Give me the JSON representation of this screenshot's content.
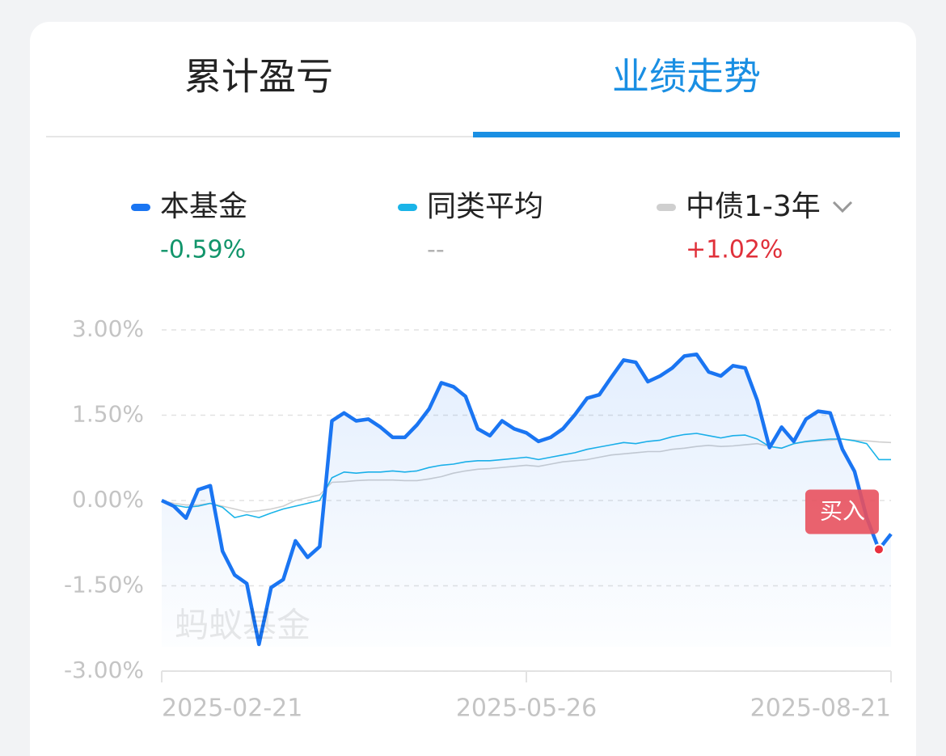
{
  "tabs": [
    "累计盈亏",
    "业绩走势"
  ],
  "watermark": "蚂蚁基金",
  "annotation": "买入",
  "chart_data": {
    "type": "line",
    "categories": [
      "2025-02-21",
      null,
      null,
      null,
      null,
      null,
      null,
      null,
      null,
      null,
      null,
      null,
      null,
      null,
      null,
      null,
      null,
      null,
      null,
      null,
      null,
      null,
      null,
      null,
      null,
      null,
      null,
      null,
      null,
      null,
      "2025-05-26",
      null,
      null,
      null,
      null,
      null,
      null,
      null,
      null,
      null,
      null,
      null,
      null,
      null,
      null,
      null,
      null,
      null,
      null,
      null,
      null,
      null,
      null,
      null,
      null,
      null,
      null,
      null,
      null,
      null,
      "2025-08-21"
    ],
    "ylim": [
      -3,
      3
    ],
    "yticks": [
      {
        "value": 3,
        "label": "3.00%"
      },
      {
        "value": 1.5,
        "label": "1.50%"
      },
      {
        "value": 0,
        "label": "0.00%"
      },
      {
        "value": -1.5,
        "label": "-1.50%"
      },
      {
        "value": -3,
        "label": "-3.00%"
      }
    ],
    "grid": true,
    "series": [
      {
        "name": "本基金",
        "color": "#1a75f2",
        "change": "-0.59%",
        "change_color": "#12956b",
        "values": [
          0,
          -0.1,
          -0.31,
          0.19,
          0.26,
          -0.89,
          -1.31,
          -1.46,
          -2.53,
          -1.53,
          -1.39,
          -0.71,
          -1.0,
          -0.81,
          1.4,
          1.54,
          1.4,
          1.43,
          1.29,
          1.11,
          1.11,
          1.33,
          1.61,
          2.07,
          2.0,
          1.83,
          1.26,
          1.14,
          1.4,
          1.26,
          1.19,
          1.04,
          1.11,
          1.26,
          1.51,
          1.8,
          1.86,
          2.17,
          2.47,
          2.43,
          2.09,
          2.19,
          2.33,
          2.54,
          2.57,
          2.26,
          2.19,
          2.37,
          2.33,
          1.76,
          0.93,
          1.29,
          1.04,
          1.43,
          1.57,
          1.54,
          0.9,
          0.51,
          -0.3,
          -0.86,
          -0.59
        ]
      },
      {
        "name": "同类平均",
        "color": "#1ab4e8",
        "change": "--",
        "change_color": "#b0b0b0",
        "values": [
          0,
          -0.08,
          -0.12,
          -0.1,
          -0.05,
          -0.12,
          -0.3,
          -0.25,
          -0.3,
          -0.22,
          -0.15,
          -0.1,
          -0.05,
          0,
          0.4,
          0.5,
          0.48,
          0.5,
          0.5,
          0.52,
          0.5,
          0.52,
          0.58,
          0.62,
          0.64,
          0.68,
          0.7,
          0.7,
          0.72,
          0.74,
          0.76,
          0.72,
          0.76,
          0.8,
          0.84,
          0.9,
          0.94,
          0.98,
          1.02,
          1.0,
          1.04,
          1.06,
          1.12,
          1.16,
          1.18,
          1.14,
          1.1,
          1.14,
          1.15,
          1.08,
          0.95,
          0.92,
          1.0,
          1.04,
          1.06,
          1.08,
          1.08,
          1.05,
          1.0,
          0.72,
          0.72
        ]
      },
      {
        "name": "中债1-3年",
        "color": "#cfcfcf",
        "change": "+1.02%",
        "change_color": "#e0303a",
        "values": [
          0,
          -0.05,
          -0.08,
          -0.08,
          -0.05,
          -0.1,
          -0.15,
          -0.2,
          -0.18,
          -0.15,
          -0.1,
          0,
          0.05,
          0.1,
          0.32,
          0.33,
          0.35,
          0.36,
          0.36,
          0.36,
          0.35,
          0.35,
          0.38,
          0.42,
          0.48,
          0.52,
          0.55,
          0.56,
          0.58,
          0.6,
          0.62,
          0.6,
          0.64,
          0.68,
          0.7,
          0.72,
          0.76,
          0.8,
          0.82,
          0.84,
          0.86,
          0.86,
          0.9,
          0.92,
          0.95,
          0.97,
          0.95,
          0.96,
          0.98,
          1.0,
          0.95,
          0.92,
          1.0,
          1.03,
          1.05,
          1.06,
          1.08,
          1.06,
          1.05,
          1.03,
          1.02
        ]
      }
    ]
  }
}
